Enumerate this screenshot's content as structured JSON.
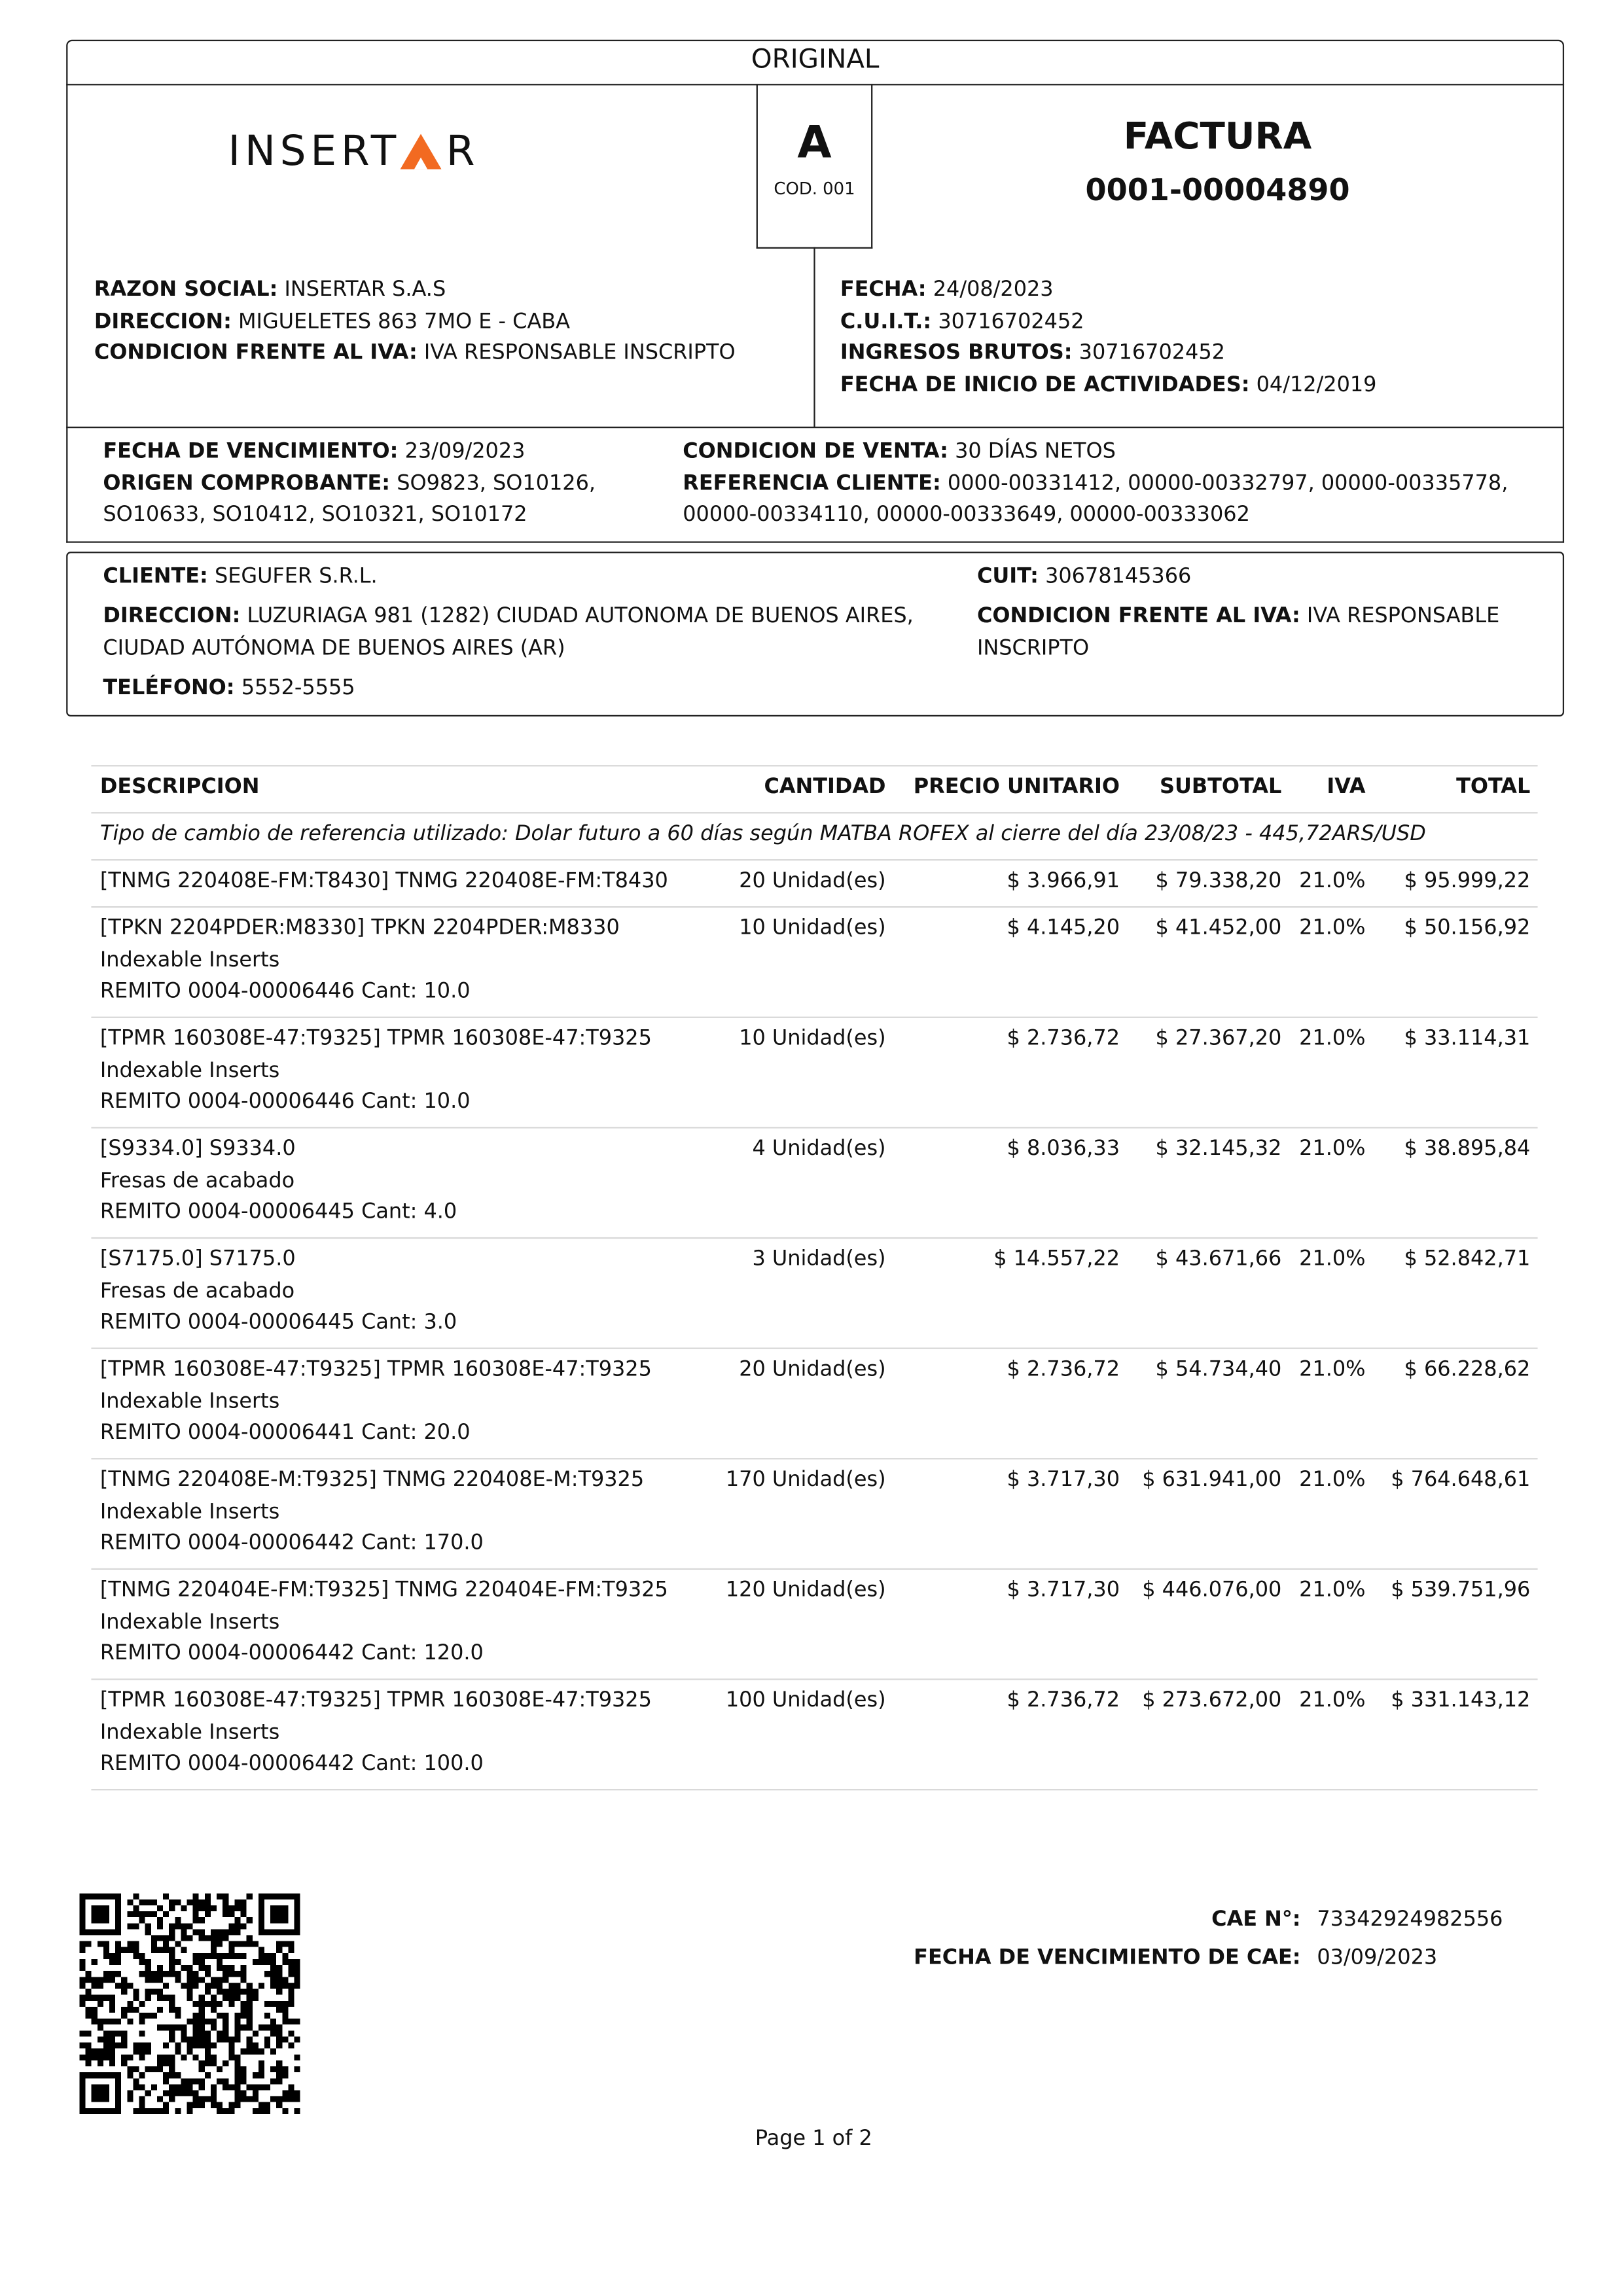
{
  "copy_label": "ORIGINAL",
  "logo": {
    "before": "INSERT",
    "after": "R"
  },
  "letter": {
    "code": "A",
    "cod": "COD. 001"
  },
  "doc": {
    "type": "FACTURA",
    "number": "0001-00004890"
  },
  "issuer_left": [
    {
      "label": "RAZON SOCIAL:",
      "value": "INSERTAR S.A.S"
    },
    {
      "label": "DIRECCION:",
      "value": "MIGUELETES 863 7MO E - CABA"
    },
    {
      "label": "CONDICION FRENTE AL IVA:",
      "value": "IVA RESPONSABLE INSCRIPTO"
    }
  ],
  "issuer_right": [
    {
      "label": "FECHA:",
      "value": "24/08/2023"
    },
    {
      "label": "C.U.I.T.:",
      "value": "30716702452"
    },
    {
      "label": "INGRESOS BRUTOS:",
      "value": "30716702452"
    },
    {
      "label": "FECHA DE INICIO DE ACTIVIDADES:",
      "value": "04/12/2019"
    }
  ],
  "sale_left": [
    {
      "label": "FECHA DE VENCIMIENTO:",
      "value": "23/09/2023"
    },
    {
      "label": "ORIGEN COMPROBANTE:",
      "value": "SO9823, SO10126, SO10633, SO10412, SO10321, SO10172"
    }
  ],
  "sale_right": [
    {
      "label": "CONDICION DE VENTA:",
      "value": "30 DÍAS NETOS"
    },
    {
      "label": "REFERENCIA CLIENTE:",
      "value": "0000-00331412, 00000-00332797, 00000-00335778, 00000-00334110, 00000-00333649, 00000-00333062"
    }
  ],
  "client_left": [
    {
      "label": "CLIENTE:",
      "value": "SEGUFER S.R.L."
    },
    {
      "label": "DIRECCION:",
      "value": "LUZURIAGA 981 (1282) CIUDAD AUTONOMA DE BUENOS AIRES, CIUDAD AUTÓNOMA DE BUENOS AIRES (AR)"
    },
    {
      "label": "TELÉFONO:",
      "value": "5552-5555"
    }
  ],
  "client_right": [
    {
      "label": "CUIT:",
      "value": "30678145366"
    },
    {
      "label": "CONDICION FRENTE AL IVA:",
      "value": "IVA RESPONSABLE INSCRIPTO"
    }
  ],
  "table": {
    "columns": [
      "DESCRIPCION",
      "CANTIDAD",
      "PRECIO UNITARIO",
      "SUBTOTAL",
      "IVA",
      "TOTAL"
    ],
    "note": "Tipo de cambio de referencia utilizado: Dolar futuro a 60 días según MATBA ROFEX al cierre del día 23/08/23 - 445,72ARS/USD",
    "rows": [
      {
        "description": [
          "[TNMG 220408E-FM:T8430] TNMG 220408E-FM:T8430"
        ],
        "quantity": "20 Unidad(es)",
        "unit_price": "$ 3.966,91",
        "subtotal": "$ 79.338,20",
        "iva": "21.0%",
        "total": "$ 95.999,22"
      },
      {
        "description": [
          "[TPKN 2204PDER:M8330] TPKN 2204PDER:M8330",
          "Indexable Inserts",
          "REMITO 0004-00006446 Cant: 10.0"
        ],
        "quantity": "10 Unidad(es)",
        "unit_price": "$ 4.145,20",
        "subtotal": "$ 41.452,00",
        "iva": "21.0%",
        "total": "$ 50.156,92"
      },
      {
        "description": [
          "[TPMR 160308E-47:T9325] TPMR 160308E-47:T9325",
          "Indexable Inserts",
          "REMITO 0004-00006446 Cant: 10.0"
        ],
        "quantity": "10 Unidad(es)",
        "unit_price": "$ 2.736,72",
        "subtotal": "$ 27.367,20",
        "iva": "21.0%",
        "total": "$ 33.114,31"
      },
      {
        "description": [
          "[S9334.0] S9334.0",
          "Fresas de acabado",
          "REMITO 0004-00006445 Cant: 4.0"
        ],
        "quantity": "4 Unidad(es)",
        "unit_price": "$ 8.036,33",
        "subtotal": "$ 32.145,32",
        "iva": "21.0%",
        "total": "$ 38.895,84"
      },
      {
        "description": [
          "[S7175.0] S7175.0",
          "Fresas de acabado",
          "REMITO 0004-00006445 Cant: 3.0"
        ],
        "quantity": "3 Unidad(es)",
        "unit_price": "$ 14.557,22",
        "subtotal": "$ 43.671,66",
        "iva": "21.0%",
        "total": "$ 52.842,71"
      },
      {
        "description": [
          "[TPMR 160308E-47:T9325] TPMR 160308E-47:T9325",
          "Indexable Inserts",
          "REMITO 0004-00006441 Cant: 20.0"
        ],
        "quantity": "20 Unidad(es)",
        "unit_price": "$ 2.736,72",
        "subtotal": "$ 54.734,40",
        "iva": "21.0%",
        "total": "$ 66.228,62"
      },
      {
        "description": [
          "[TNMG 220408E-M:T9325] TNMG 220408E-M:T9325",
          "Indexable Inserts",
          "REMITO 0004-00006442 Cant: 170.0"
        ],
        "quantity": "170 Unidad(es)",
        "unit_price": "$ 3.717,30",
        "subtotal": "$ 631.941,00",
        "iva": "21.0%",
        "total": "$ 764.648,61"
      },
      {
        "description": [
          "[TNMG 220404E-FM:T9325] TNMG 220404E-FM:T9325",
          "Indexable Inserts",
          "REMITO 0004-00006442 Cant: 120.0"
        ],
        "quantity": "120 Unidad(es)",
        "unit_price": "$ 3.717,30",
        "subtotal": "$ 446.076,00",
        "iva": "21.0%",
        "total": "$ 539.751,96"
      },
      {
        "description": [
          "[TPMR 160308E-47:T9325] TPMR 160308E-47:T9325",
          "Indexable Inserts",
          "REMITO 0004-00006442 Cant: 100.0"
        ],
        "quantity": "100 Unidad(es)",
        "unit_price": "$ 2.736,72",
        "subtotal": "$ 273.672,00",
        "iva": "21.0%",
        "total": "$ 331.143,12"
      }
    ]
  },
  "cae": [
    {
      "label": "CAE N°:",
      "value": "73342924982556"
    },
    {
      "label": "FECHA DE VENCIMIENTO DE CAE:",
      "value": "03/09/2023"
    }
  ],
  "footer": "Page 1 of 2"
}
